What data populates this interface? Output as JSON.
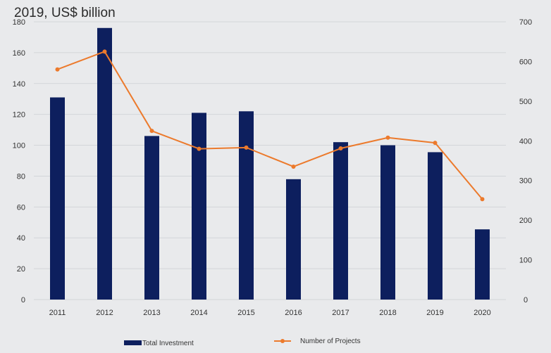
{
  "chart_data": {
    "type": "bar",
    "title": "2019, US$ billion",
    "categories": [
      "2011",
      "2012",
      "2013",
      "2014",
      "2015",
      "2016",
      "2017",
      "2018",
      "2019",
      "2020"
    ],
    "series": [
      {
        "name": "Total Investment",
        "type": "bar",
        "axis": "left",
        "color": "#0d1f5e",
        "values": [
          131,
          176,
          106,
          121,
          122,
          78,
          102,
          100,
          95.5,
          45.5
        ]
      },
      {
        "name": "Number of Projects",
        "type": "line",
        "axis": "right",
        "color": "#ec7a2c",
        "values": [
          580,
          625,
          425,
          380,
          383,
          335,
          381,
          408,
          395,
          253
        ]
      }
    ],
    "y_left": {
      "min": 0,
      "max": 180,
      "ticks": [
        0,
        20,
        40,
        60,
        80,
        100,
        120,
        140,
        160,
        180
      ]
    },
    "y_right": {
      "min": 0,
      "max": 700,
      "ticks": [
        0,
        100,
        200,
        300,
        400,
        500,
        600,
        700
      ]
    },
    "grid": true,
    "legend_position": "bottom"
  }
}
